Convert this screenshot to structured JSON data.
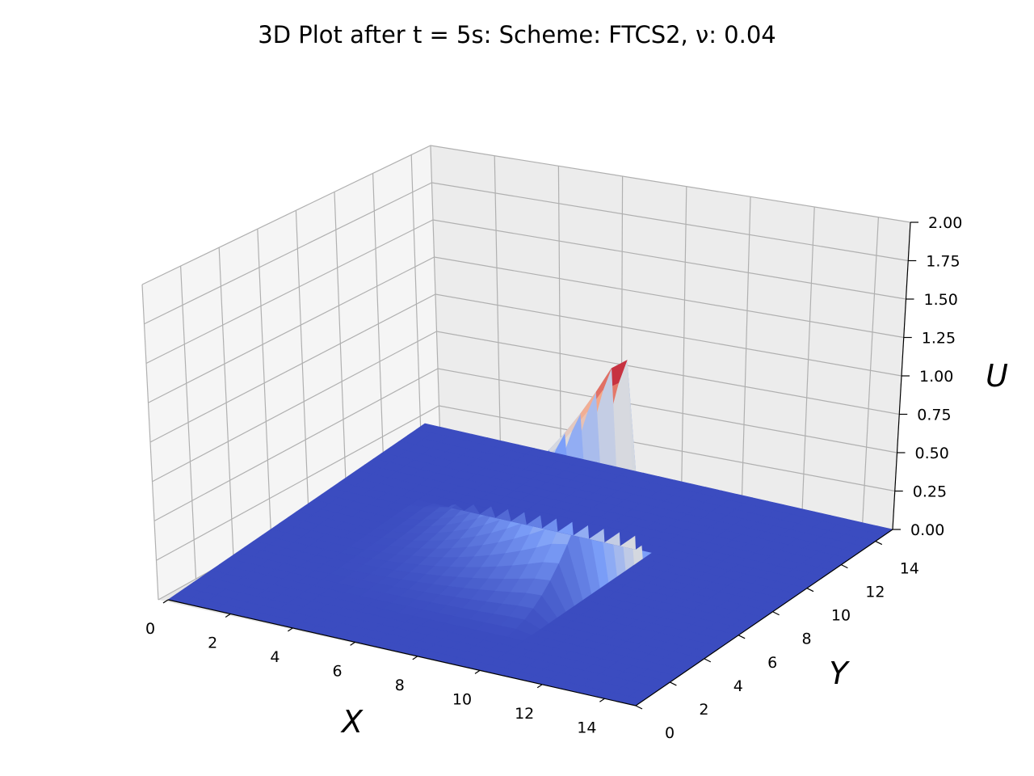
{
  "chart_data": {
    "type": "surface",
    "title": "3D Plot after t = 5s: Scheme: FTCS2, ν: 0.04",
    "xlabel": "X",
    "ylabel": "Y",
    "zlabel": "U",
    "xlim": [
      0,
      15
    ],
    "ylim": [
      0,
      15
    ],
    "zlim": [
      0,
      2.0
    ],
    "x_ticks": [
      "0",
      "2",
      "4",
      "6",
      "8",
      "10",
      "12",
      "14"
    ],
    "y_ticks": [
      "0",
      "2",
      "4",
      "6",
      "8",
      "10",
      "12",
      "14"
    ],
    "z_ticks": [
      "0.00",
      "0.25",
      "0.50",
      "0.75",
      "1.00",
      "1.25",
      "1.50",
      "1.75",
      "2.00"
    ],
    "colormap": "coolwarm",
    "baseline_value": 0,
    "peak_value": 1.3,
    "peak_location": {
      "x": 9.2,
      "y": 9.3
    },
    "hump_region": {
      "x": [
        2,
        10
      ],
      "y": [
        2,
        10
      ]
    },
    "grid": true
  }
}
